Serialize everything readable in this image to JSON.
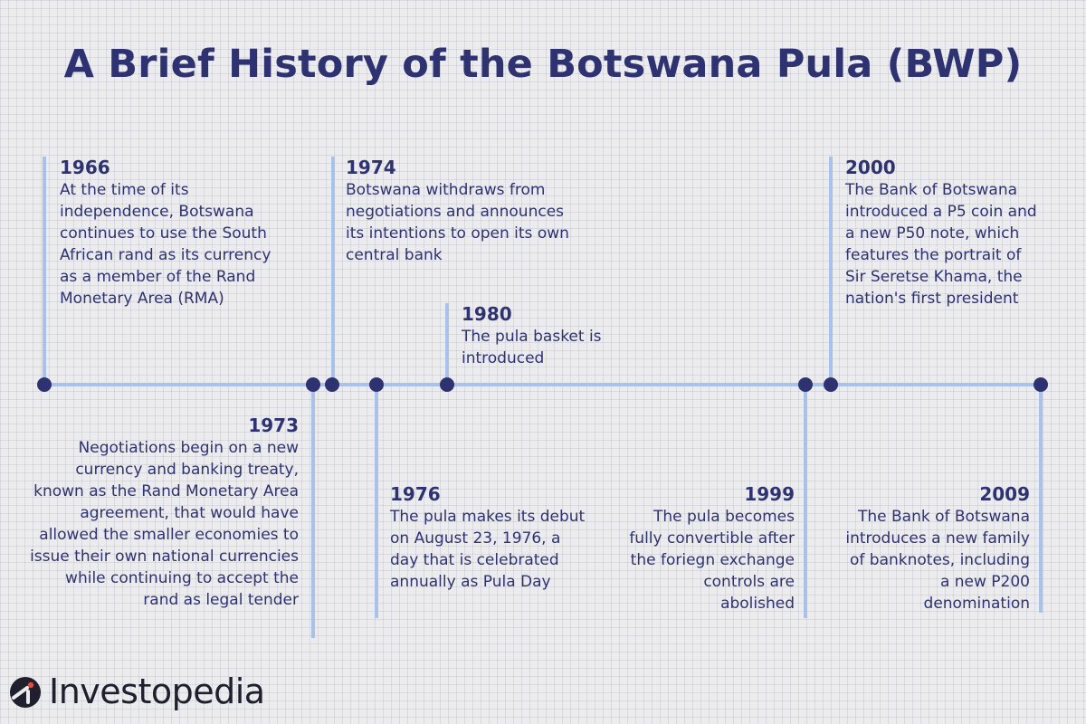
{
  "title": "A Brief History of the Botswana Pula (BWP)",
  "colors": {
    "text": "#2e3270",
    "line": "#a9c2ea",
    "dot": "#2e3270",
    "background": "#ececef"
  },
  "events": {
    "e1966": {
      "year": "1966",
      "text": "At the time of its independence, Botswana continues to use the South African rand as its currency as a member of the Rand Monetary Area (RMA)"
    },
    "e1973": {
      "year": "1973",
      "text": "Negotiations begin on a new currency and banking treaty, known as the Rand Monetary Area agreement, that would have allowed the smaller economies to issue their own national currencies while continuing to accept the rand as legal tender"
    },
    "e1974": {
      "year": "1974",
      "text": "Botswana withdraws from negotiations and announces its intentions to open its own central bank"
    },
    "e1976": {
      "year": "1976",
      "text": "The pula makes its debut on August 23, 1976, a day that is celebrated annually as Pula Day"
    },
    "e1980": {
      "year": "1980",
      "text": "The pula basket is introduced"
    },
    "e1999": {
      "year": "1999",
      "text": "The pula becomes fully convertible after the foriegn exchange controls are abolished"
    },
    "e2000": {
      "year": "2000",
      "text": "The Bank of Botswana introduced a P5 coin and a new P50 note, which features the portrait of Sir Seretse Khama, the nation's first president"
    },
    "e2009": {
      "year": "2009",
      "text": "The Bank of Botswana introduces a new family of banknotes, including a new P200 denomination"
    }
  },
  "logo": {
    "text": "Investopedia",
    "icon": "investopedia-logo-icon"
  }
}
